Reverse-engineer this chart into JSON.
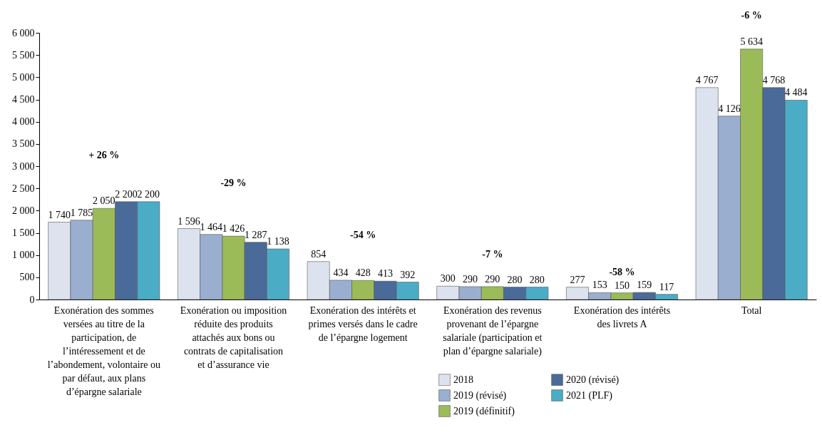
{
  "chart_data": {
    "type": "bar",
    "categories": [
      "Exonération des sommes versées au titre de la participation, de l’intéressement et de l’abondement, volontaire ou par défaut, aux plans d’épargne salariale",
      "Exonération ou imposition réduite des produits attachés aux bons ou contrats de capitalisation et d’assurance vie",
      "Exonération des intérêts et primes versés dans le cadre de l’épargne logement",
      "Exonération des revenus provenant de l’épargne salariale (participation et plan d’épargne salariale)",
      "Exonération des intérêts des livrets A",
      "Total"
    ],
    "series": [
      {
        "name": "2018",
        "color": "#dde3ee",
        "values": [
          1740,
          1596,
          854,
          300,
          277,
          4767
        ]
      },
      {
        "name": "2019 (révisé)",
        "color": "#9aafd0",
        "values": [
          1785,
          1464,
          434,
          290,
          153,
          4126
        ]
      },
      {
        "name": "2019 (définitif)",
        "color": "#9bbb59",
        "values": [
          2050,
          1426,
          428,
          290,
          150,
          5634
        ]
      },
      {
        "name": "2020 (révisé)",
        "color": "#4a6a9a",
        "values": [
          2200,
          1287,
          413,
          280,
          159,
          4768
        ]
      },
      {
        "name": "2021 (PLF)",
        "color": "#4bacc6",
        "values": [
          2200,
          1138,
          392,
          280,
          117,
          4484
        ]
      }
    ],
    "ylim": [
      0,
      6000
    ],
    "yticks": [
      {
        "value": 0,
        "label": "0"
      },
      {
        "value": 500,
        "label": "500"
      },
      {
        "value": 1000,
        "label": "1 000"
      },
      {
        "value": 1500,
        "label": "1 500"
      },
      {
        "value": 2000,
        "label": "2 000"
      },
      {
        "value": 2500,
        "label": "2 500"
      },
      {
        "value": 3000,
        "label": "3 000"
      },
      {
        "value": 3500,
        "label": "3 500"
      },
      {
        "value": 4000,
        "label": "4 000"
      },
      {
        "value": 4500,
        "label": "4 500"
      },
      {
        "value": 5000,
        "label": "5 000"
      },
      {
        "value": 5500,
        "label": "5 500"
      },
      {
        "value": 6000,
        "label": "6 000"
      }
    ],
    "data_labels": true,
    "grid": false,
    "legend": "bottom",
    "annotations": [
      "+ 26 %",
      "-29 %",
      "-54 %",
      "-7 %",
      "-58 %",
      "-6 %"
    ]
  }
}
